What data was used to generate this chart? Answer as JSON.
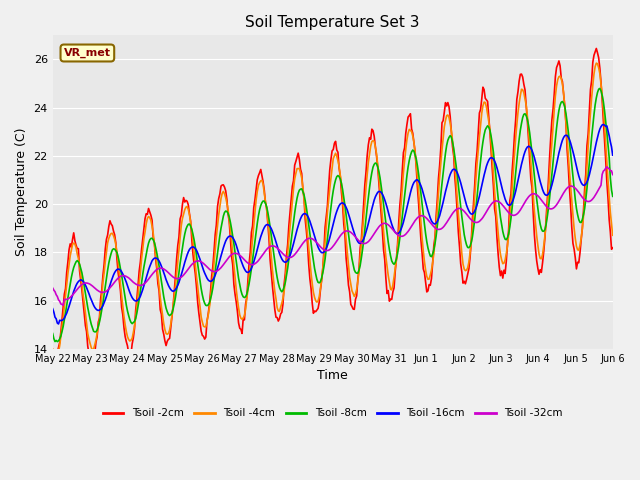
{
  "title": "Soil Temperature Set 3",
  "xlabel": "Time",
  "ylabel": "Soil Temperature (C)",
  "ylim": [
    14,
    27
  ],
  "yticks": [
    14,
    16,
    18,
    20,
    22,
    24,
    26
  ],
  "fig_bg": "#f0f0f0",
  "ax_bg": "#e8e8e8",
  "annotation_text": "VR_met",
  "annotation_facecolor": "#ffffcc",
  "annotation_edgecolor": "#886600",
  "series_colors": [
    "#ff0000",
    "#ff8800",
    "#00bb00",
    "#0000ff",
    "#cc00cc"
  ],
  "series_labels": [
    "Tsoil -2cm",
    "Tsoil -4cm",
    "Tsoil -8cm",
    "Tsoil -16cm",
    "Tsoil -32cm"
  ],
  "date_labels": [
    "May 22",
    "May 23",
    "May 24",
    "May 25",
    "May 26",
    "May 27",
    "May 28",
    "May 29",
    "May 30",
    "May 31",
    "Jun 1",
    "Jun 2",
    "Jun 3",
    "Jun 4",
    "Jun 5",
    "Jun 6"
  ],
  "n_points": 480
}
